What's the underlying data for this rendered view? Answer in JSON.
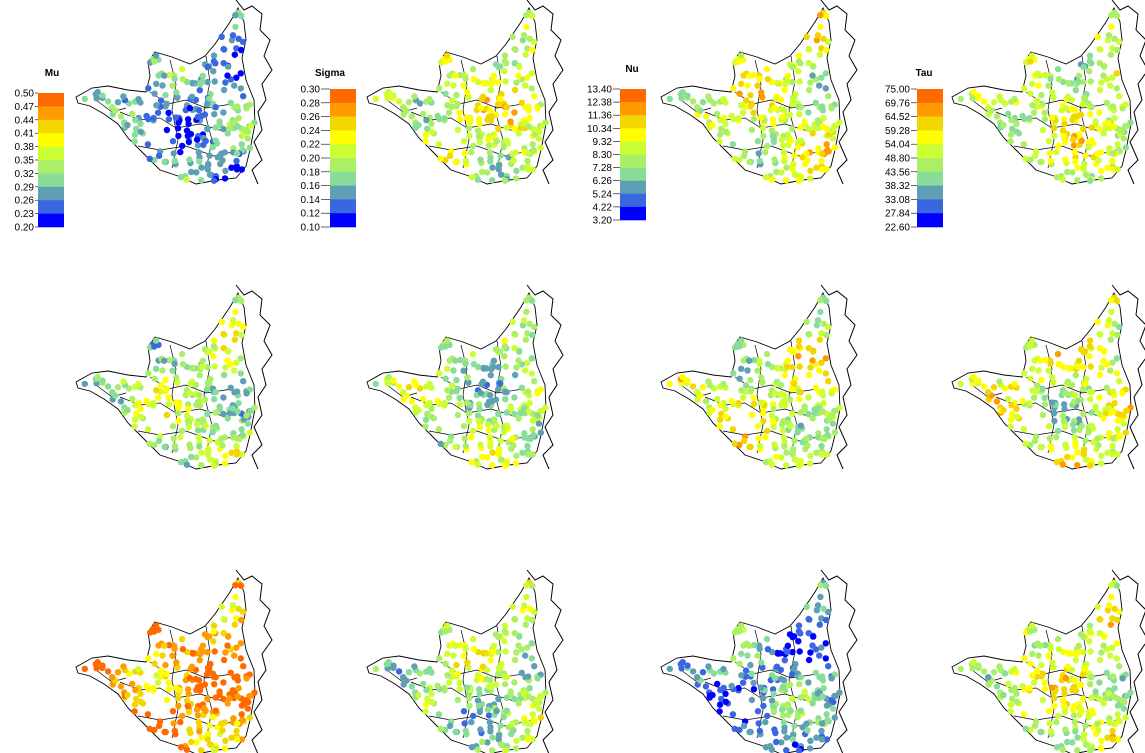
{
  "figure": {
    "rows": 3,
    "columns": 4,
    "panels": [
      {
        "variable": "Mu",
        "row": 1,
        "col": 1,
        "dominant_level": 7
      },
      {
        "variable": "Sigma",
        "row": 1,
        "col": 2,
        "dominant_level": 4
      },
      {
        "variable": "Nu",
        "row": 1,
        "col": 3,
        "dominant_level": 4
      },
      {
        "variable": "Tau",
        "row": 1,
        "col": 4,
        "dominant_level": 4
      },
      {
        "variable": "Mu",
        "row": 2,
        "col": 1,
        "dominant_level": 5
      },
      {
        "variable": "Sigma",
        "row": 2,
        "col": 2,
        "dominant_level": 5
      },
      {
        "variable": "Nu",
        "row": 2,
        "col": 3,
        "dominant_level": 4
      },
      {
        "variable": "Tau",
        "row": 2,
        "col": 4,
        "dominant_level": 4
      },
      {
        "variable": "Mu",
        "row": 3,
        "col": 1,
        "dominant_level": 1
      },
      {
        "variable": "Sigma",
        "row": 3,
        "col": 2,
        "dominant_level": 5
      },
      {
        "variable": "Nu",
        "row": 3,
        "col": 3,
        "dominant_level": 7
      },
      {
        "variable": "Tau",
        "row": 3,
        "col": 4,
        "dominant_level": 4
      }
    ]
  },
  "color_scale": [
    "#ff6a00",
    "#ff9a00",
    "#f2d600",
    "#ffff00",
    "#ccff33",
    "#aaef66",
    "#88dd99",
    "#5e9fb4",
    "#3a66e0",
    "#0000ff"
  ],
  "legends": [
    {
      "title": "Mu",
      "ticks": [
        "0.50",
        "0.47",
        "0.44",
        "0.41",
        "0.38",
        "0.35",
        "0.32",
        "0.29",
        "0.26",
        "0.23",
        "0.20"
      ]
    },
    {
      "title": "Sigma",
      "ticks": [
        "0.30",
        "0.28",
        "0.26",
        "0.24",
        "0.22",
        "0.20",
        "0.18",
        "0.16",
        "0.14",
        "0.12",
        "0.10"
      ]
    },
    {
      "title": "Nu",
      "ticks": [
        "13.40",
        "12.38",
        "11.36",
        "10.34",
        "9.32",
        "8.30",
        "7.28",
        "6.26",
        "5.24",
        "4.22",
        "3.20"
      ]
    },
    {
      "title": "Tau",
      "ticks": [
        "75.00",
        "69.76",
        "64.52",
        "59.28",
        "54.04",
        "48.80",
        "43.56",
        "38.32",
        "33.08",
        "27.84",
        "22.60"
      ]
    }
  ]
}
